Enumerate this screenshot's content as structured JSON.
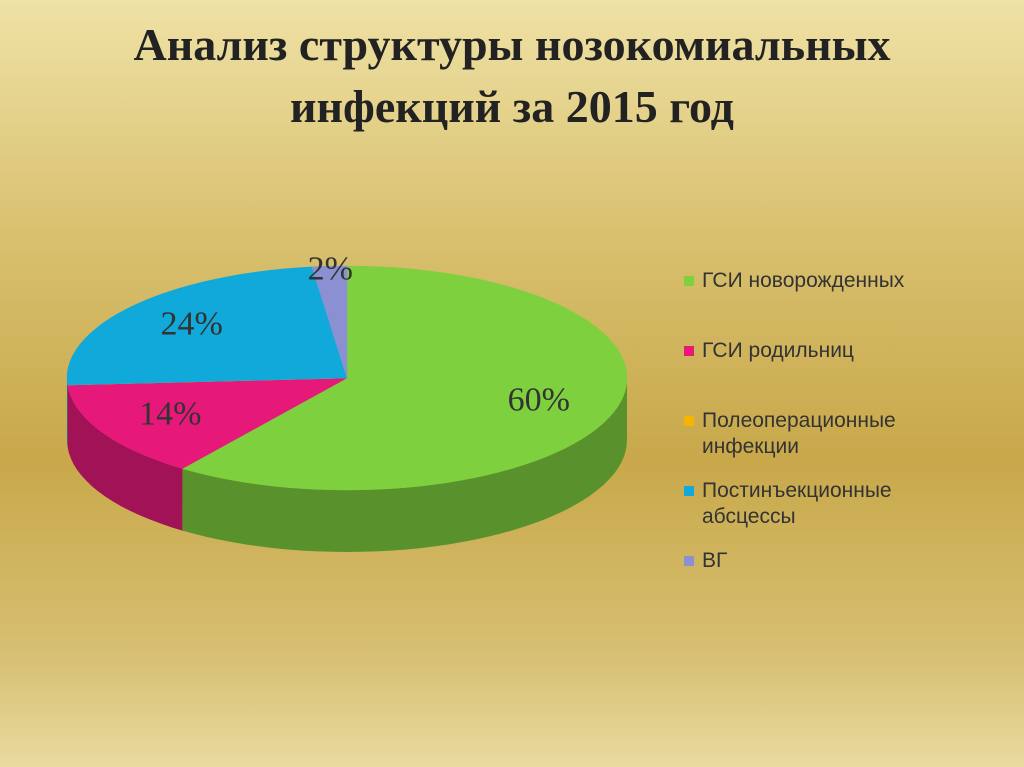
{
  "chart_data": {
    "type": "pie",
    "title": "Анализ структуры нозокомиальных инфекций за 2015 год",
    "categories": [
      "ГСИ новорожденных",
      "ГСИ родильниц",
      "Полеоперационные инфекции",
      "Постинъекционные абсцессы",
      "ВГ"
    ],
    "values": [
      60,
      14,
      0,
      24,
      2
    ],
    "value_labels": [
      "60%",
      "14%",
      null,
      "24%",
      "2%"
    ],
    "colors": [
      "#7fd03f",
      "#e6197b",
      "#f4b400",
      "#10a9d9",
      "#8a90d2"
    ],
    "legend": "right"
  }
}
